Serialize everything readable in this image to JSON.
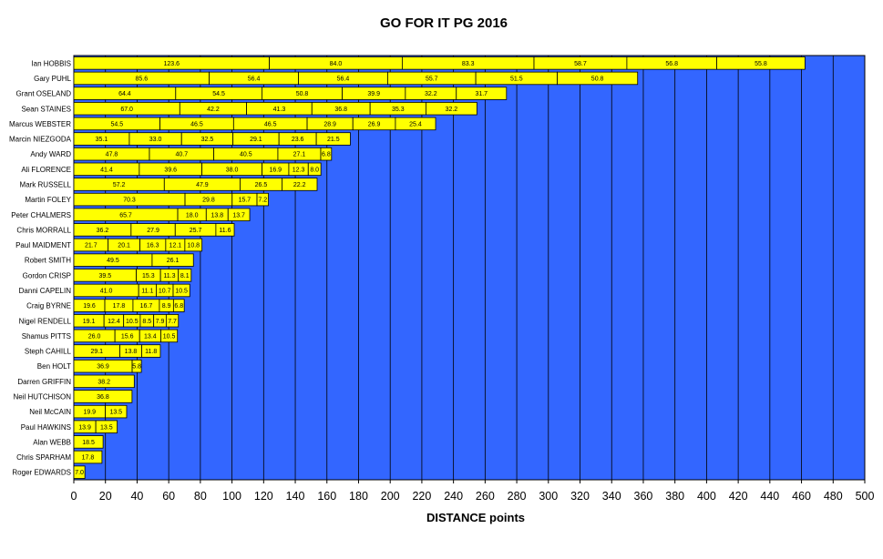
{
  "chart_data": {
    "type": "bar",
    "orientation": "horizontal",
    "stacked": true,
    "title": "GO FOR IT PG 2016",
    "xlabel": "DISTANCE points",
    "ylabel": "",
    "xlim": [
      0,
      500
    ],
    "xticks": [
      0,
      20,
      40,
      60,
      80,
      100,
      120,
      140,
      160,
      180,
      200,
      220,
      240,
      260,
      280,
      300,
      320,
      340,
      360,
      380,
      400,
      420,
      440,
      460,
      480,
      500
    ],
    "grid": "vertical",
    "legend": "none",
    "colors": {
      "plot_background": "#3366ff",
      "bar_fill": "#ffff00",
      "bar_edge": "#000000",
      "gridline": "#000000"
    },
    "rows": [
      {
        "name": "Ian HOBBIS",
        "segments": [
          123.6,
          84.0,
          83.3,
          58.7,
          56.8,
          55.8
        ]
      },
      {
        "name": "Gary PUHL",
        "segments": [
          85.6,
          56.4,
          56.4,
          55.7,
          51.5,
          50.8
        ]
      },
      {
        "name": "Grant OSELAND",
        "segments": [
          64.4,
          54.5,
          50.8,
          39.9,
          32.2,
          31.7
        ]
      },
      {
        "name": "Sean STAINES",
        "segments": [
          67.0,
          42.2,
          41.3,
          36.8,
          35.3,
          32.2
        ]
      },
      {
        "name": "Marcus WEBSTER",
        "segments": [
          54.5,
          46.5,
          46.5,
          28.9,
          26.9,
          25.4
        ]
      },
      {
        "name": "Marcin NIEZGODA",
        "segments": [
          35.1,
          33.0,
          32.5,
          29.1,
          23.6,
          21.5
        ]
      },
      {
        "name": "Andy WARD",
        "segments": [
          47.8,
          40.7,
          40.5,
          27.1,
          6.8
        ]
      },
      {
        "name": "Ali FLORENCE",
        "segments": [
          41.4,
          39.6,
          38.0,
          16.9,
          12.3,
          8.0
        ]
      },
      {
        "name": "Mark RUSSELL",
        "segments": [
          57.2,
          47.9,
          26.5,
          22.2
        ]
      },
      {
        "name": "Martin FOLEY",
        "segments": [
          70.3,
          29.8,
          15.7,
          7.2
        ]
      },
      {
        "name": "Peter CHALMERS",
        "segments": [
          65.7,
          18.0,
          13.8,
          13.7
        ]
      },
      {
        "name": "Chris MORRALL",
        "segments": [
          36.2,
          27.9,
          25.7,
          11.6
        ]
      },
      {
        "name": "Paul MAIDMENT",
        "segments": [
          21.7,
          20.1,
          16.3,
          12.1,
          10.8
        ]
      },
      {
        "name": "Robert SMITH",
        "segments": [
          49.5,
          26.1
        ]
      },
      {
        "name": "Gordon CRISP",
        "segments": [
          39.5,
          15.3,
          11.3,
          8.1
        ]
      },
      {
        "name": "Danni CAPELIN",
        "segments": [
          41.0,
          11.1,
          10.7,
          10.5
        ]
      },
      {
        "name": "Craig BYRNE",
        "segments": [
          19.6,
          17.8,
          16.7,
          8.9,
          6.8
        ]
      },
      {
        "name": "Nigel RENDELL",
        "segments": [
          19.1,
          12.4,
          10.5,
          8.5,
          7.9,
          7.7
        ]
      },
      {
        "name": "Shamus PITTS",
        "segments": [
          26.0,
          15.6,
          13.4,
          10.5
        ]
      },
      {
        "name": "Steph CAHILL",
        "segments": [
          29.1,
          13.8,
          11.8
        ]
      },
      {
        "name": "Ben HOLT",
        "segments": [
          36.9,
          5.8
        ]
      },
      {
        "name": "Darren GRIFFIN",
        "segments": [
          38.2
        ]
      },
      {
        "name": "Neil HUTCHISON",
        "segments": [
          36.8
        ]
      },
      {
        "name": "Neil McCAIN",
        "segments": [
          19.9,
          13.5
        ]
      },
      {
        "name": "Paul HAWKINS",
        "segments": [
          13.9,
          13.5
        ]
      },
      {
        "name": "Alan WEBB",
        "segments": [
          18.5
        ]
      },
      {
        "name": "Chris SPARHAM",
        "segments": [
          17.8
        ]
      },
      {
        "name": "Roger EDWARDS",
        "segments": [
          7.0
        ]
      }
    ]
  }
}
